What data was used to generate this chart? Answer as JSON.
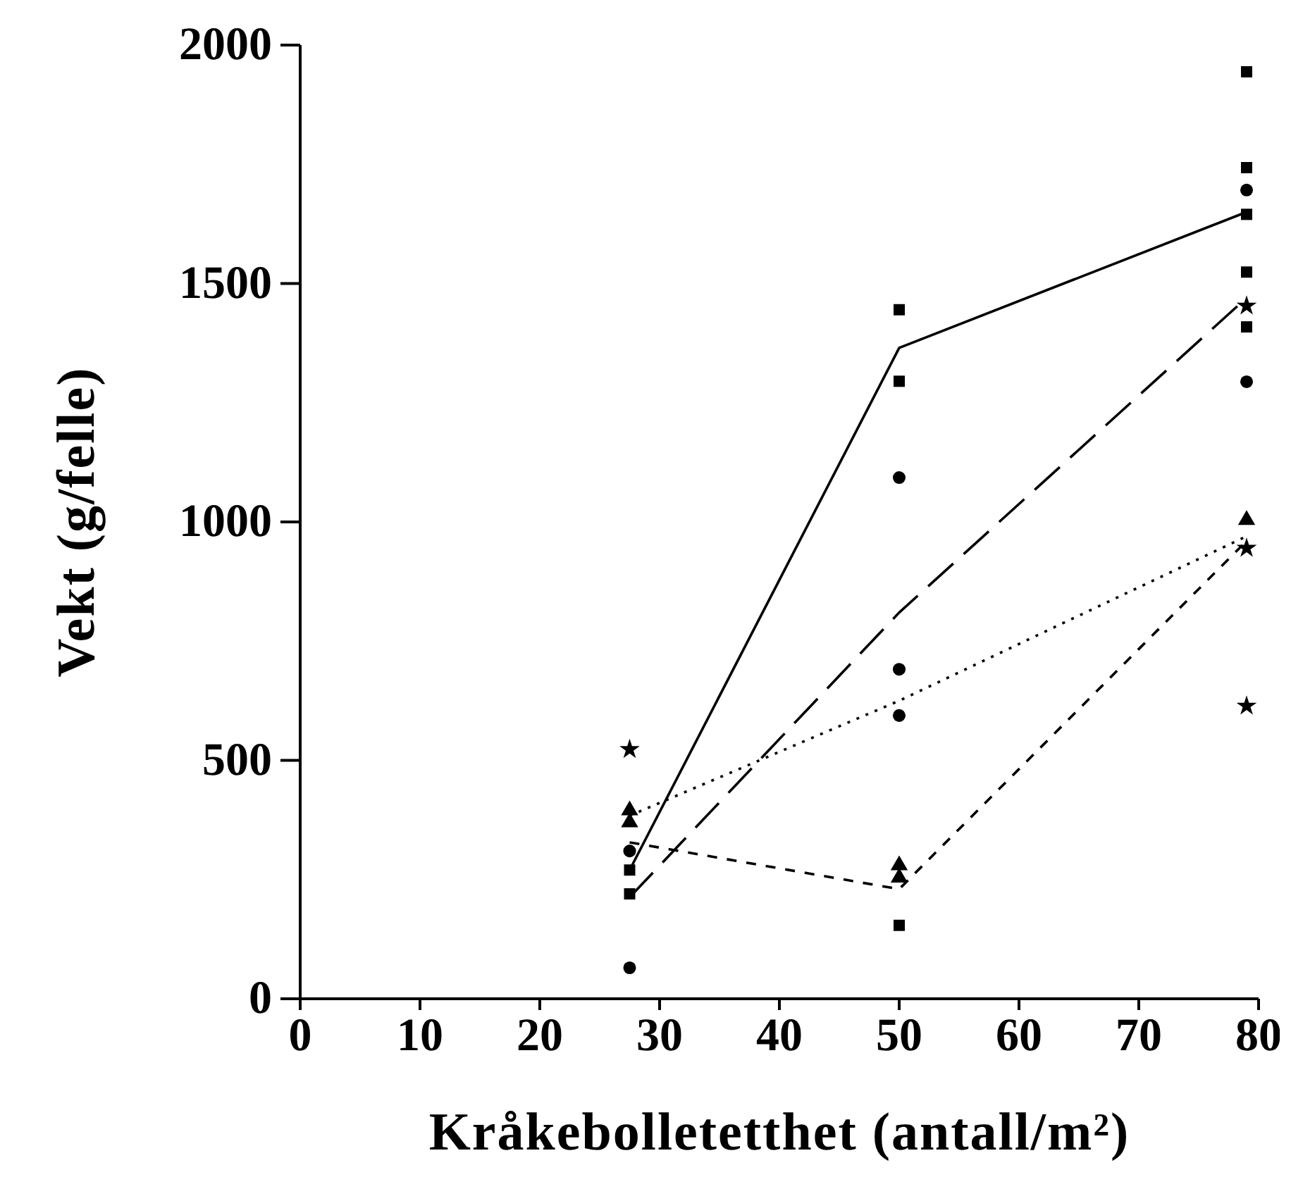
{
  "chart_data": {
    "type": "scatter",
    "xlabel": "Kråkebolletetthet (antall/m²)",
    "ylabel": "Vekt (g/felle)",
    "xlim": [
      0,
      80
    ],
    "xticks": [
      0,
      10,
      20,
      30,
      40,
      50,
      60,
      70,
      80
    ],
    "ylim": [
      0,
      2000
    ],
    "yticks": [
      0,
      500,
      1000,
      1500,
      2000
    ],
    "grid": false,
    "series": [
      {
        "marker": "square",
        "color": "#000000",
        "x": [
          27.5,
          27.5,
          50,
          50,
          50,
          79,
          79,
          79,
          79,
          79
        ],
        "values": [
          270,
          220,
          1445,
          1295,
          154,
          1944,
          1743,
          1645,
          1524,
          1409
        ]
      },
      {
        "marker": "circle",
        "color": "#000000",
        "x": [
          27.5,
          27.5,
          50,
          50,
          50,
          79,
          79
        ],
        "values": [
          310,
          65,
          1093,
          691,
          594,
          1696,
          1294
        ]
      },
      {
        "marker": "triangle",
        "color": "#000000",
        "x": [
          27.5,
          27.5,
          50,
          50,
          79
        ],
        "values": [
          395,
          370,
          280,
          254,
          1004
        ]
      },
      {
        "marker": "star",
        "color": "#000000",
        "x": [
          27.5,
          79,
          79,
          79
        ],
        "values": [
          523,
          1453,
          945,
          614
        ]
      },
      {
        "type": "line",
        "line_style": "solid",
        "color": "#000000",
        "x": [
          27.5,
          50,
          79
        ],
        "values": [
          270,
          1365,
          1650
        ]
      },
      {
        "type": "line",
        "line_style": "dashed",
        "color": "#000000",
        "x": [
          27.5,
          50,
          79
        ],
        "values": [
          213,
          810,
          1470
        ]
      },
      {
        "type": "line",
        "line_style": "dotted",
        "color": "#000000",
        "x": [
          27.5,
          50,
          79
        ],
        "values": [
          384,
          625,
          970
        ]
      },
      {
        "type": "line",
        "line_style": "dashed",
        "color": "#000000",
        "x": [
          27.5,
          50,
          79
        ],
        "values": [
          328,
          230,
          960
        ]
      }
    ]
  }
}
